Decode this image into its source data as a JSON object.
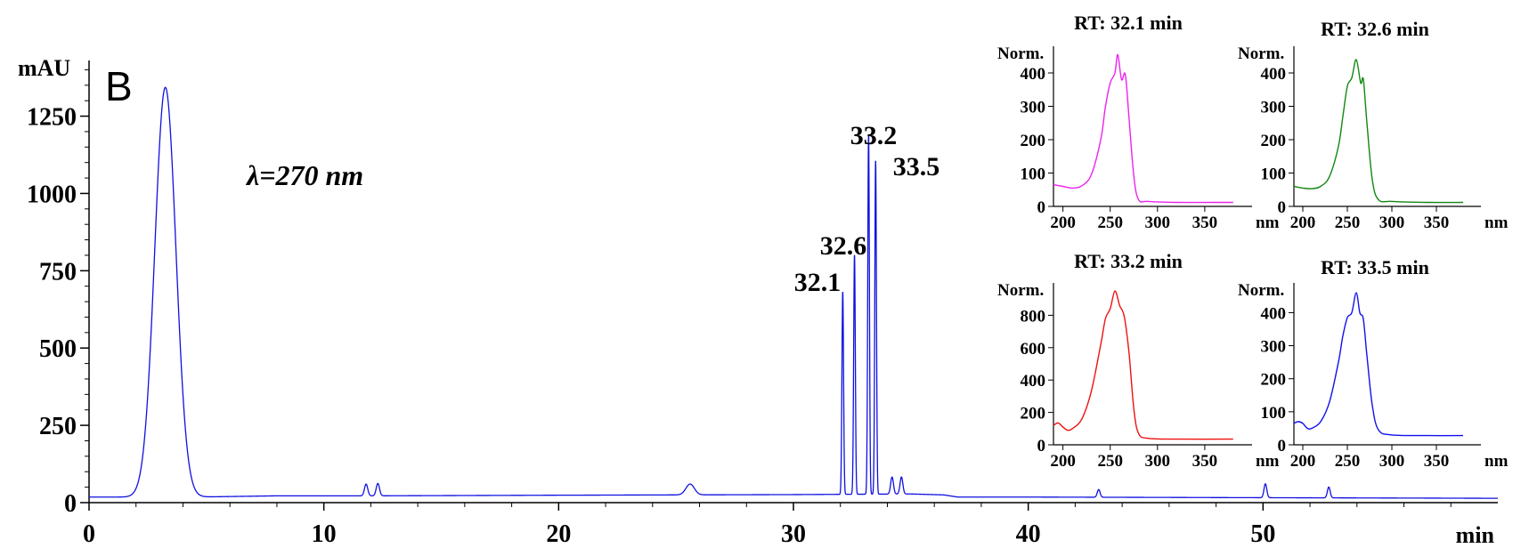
{
  "panel_label": "B",
  "annotation": "λ=270 nm",
  "colors": {
    "main": "#1010e0",
    "magenta": "#ee22ee",
    "green": "#118811",
    "red": "#ee1111",
    "blue": "#1111ee",
    "axis": "#000000"
  },
  "chart_data": [
    {
      "type": "line",
      "xlabel": "min",
      "ylabel": "mAU",
      "xlim": [
        0,
        60
      ],
      "ylim": [
        0,
        1430
      ],
      "x_ticks": [
        "0",
        "10",
        "20",
        "30",
        "40",
        "50"
      ],
      "y_ticks": [
        "0",
        "250",
        "500",
        "750",
        "1000",
        "1250"
      ],
      "baseline": [
        [
          0,
          18
        ],
        [
          2.6,
          18
        ],
        [
          4.5,
          18
        ],
        [
          8,
          22
        ],
        [
          12,
          22
        ],
        [
          20,
          24
        ],
        [
          30,
          26
        ],
        [
          35,
          28
        ],
        [
          36.4,
          25
        ],
        [
          37,
          18
        ],
        [
          40,
          18
        ],
        [
          50,
          16
        ],
        [
          60,
          14
        ]
      ],
      "peaks": [
        {
          "rt": 3.25,
          "height": 1325,
          "width": 0.45
        },
        {
          "rt": 11.8,
          "height": 38,
          "width": 0.07
        },
        {
          "rt": 12.3,
          "height": 40,
          "width": 0.07
        },
        {
          "rt": 25.6,
          "height": 35,
          "width": 0.18
        },
        {
          "rt": 32.1,
          "height": 655,
          "width": 0.035
        },
        {
          "rt": 32.6,
          "height": 775,
          "width": 0.035
        },
        {
          "rt": 33.2,
          "height": 1165,
          "width": 0.035
        },
        {
          "rt": 33.5,
          "height": 1080,
          "width": 0.035
        },
        {
          "rt": 34.2,
          "height": 55,
          "width": 0.06
        },
        {
          "rt": 34.6,
          "height": 55,
          "width": 0.06
        },
        {
          "rt": 43.0,
          "height": 25,
          "width": 0.06
        },
        {
          "rt": 50.1,
          "height": 45,
          "width": 0.06
        },
        {
          "rt": 52.8,
          "height": 35,
          "width": 0.06
        }
      ],
      "peak_labels": [
        "32.1",
        "32.6",
        "33.2",
        "33.5"
      ]
    },
    {
      "type": "line",
      "title": "RT: 32.1 min",
      "ylabel": "Norm.",
      "xlabel": "nm",
      "xlim": [
        190,
        400
      ],
      "ylim": [
        0,
        480
      ],
      "x_ticks": [
        "200",
        "250",
        "300",
        "350"
      ],
      "y_ticks": [
        "0",
        "100",
        "200",
        "300",
        "400"
      ],
      "points": [
        [
          190,
          65
        ],
        [
          200,
          60
        ],
        [
          210,
          55
        ],
        [
          220,
          62
        ],
        [
          230,
          95
        ],
        [
          240,
          200
        ],
        [
          245,
          300
        ],
        [
          250,
          370
        ],
        [
          255,
          400
        ],
        [
          258,
          455
        ],
        [
          262,
          380
        ],
        [
          266,
          395
        ],
        [
          270,
          260
        ],
        [
          275,
          90
        ],
        [
          280,
          20
        ],
        [
          290,
          15
        ],
        [
          320,
          12
        ],
        [
          360,
          12
        ],
        [
          380,
          12
        ]
      ]
    },
    {
      "type": "line",
      "title": "RT: 32.6 min",
      "ylabel": "Norm.",
      "xlabel": "nm",
      "xlim": [
        190,
        400
      ],
      "ylim": [
        0,
        480
      ],
      "x_ticks": [
        "200",
        "250",
        "300",
        "350"
      ],
      "y_ticks": [
        "0",
        "100",
        "200",
        "300",
        "400"
      ],
      "points": [
        [
          190,
          60
        ],
        [
          200,
          55
        ],
        [
          210,
          53
        ],
        [
          220,
          60
        ],
        [
          230,
          90
        ],
        [
          240,
          180
        ],
        [
          245,
          270
        ],
        [
          250,
          360
        ],
        [
          255,
          385
        ],
        [
          260,
          440
        ],
        [
          265,
          370
        ],
        [
          268,
          380
        ],
        [
          272,
          250
        ],
        [
          278,
          80
        ],
        [
          285,
          20
        ],
        [
          300,
          15
        ],
        [
          340,
          12
        ],
        [
          380,
          12
        ]
      ]
    },
    {
      "type": "line",
      "title": "RT: 33.2 min",
      "ylabel": "Norm.",
      "xlabel": "nm",
      "xlim": [
        190,
        400
      ],
      "ylim": [
        0,
        1000
      ],
      "x_ticks": [
        "200",
        "250",
        "300",
        "350"
      ],
      "y_ticks": [
        "0",
        "200",
        "400",
        "600",
        "800"
      ],
      "points": [
        [
          190,
          120
        ],
        [
          195,
          135
        ],
        [
          200,
          110
        ],
        [
          205,
          90
        ],
        [
          210,
          100
        ],
        [
          220,
          160
        ],
        [
          230,
          330
        ],
        [
          240,
          620
        ],
        [
          245,
          780
        ],
        [
          250,
          840
        ],
        [
          255,
          950
        ],
        [
          260,
          860
        ],
        [
          265,
          790
        ],
        [
          270,
          560
        ],
        [
          275,
          220
        ],
        [
          280,
          70
        ],
        [
          290,
          40
        ],
        [
          320,
          35
        ],
        [
          380,
          35
        ]
      ]
    },
    {
      "type": "line",
      "title": "RT: 33.5 min",
      "ylabel": "Norm.",
      "xlabel": "nm",
      "xlim": [
        190,
        400
      ],
      "ylim": [
        0,
        490
      ],
      "x_ticks": [
        "200",
        "250",
        "300",
        "350"
      ],
      "y_ticks": [
        "0",
        "100",
        "200",
        "300",
        "400"
      ],
      "points": [
        [
          190,
          65
        ],
        [
          195,
          70
        ],
        [
          200,
          65
        ],
        [
          205,
          50
        ],
        [
          210,
          50
        ],
        [
          220,
          70
        ],
        [
          230,
          130
        ],
        [
          240,
          250
        ],
        [
          245,
          330
        ],
        [
          250,
          385
        ],
        [
          255,
          400
        ],
        [
          260,
          460
        ],
        [
          264,
          400
        ],
        [
          268,
          380
        ],
        [
          272,
          270
        ],
        [
          278,
          120
        ],
        [
          285,
          45
        ],
        [
          300,
          30
        ],
        [
          340,
          28
        ],
        [
          380,
          28
        ]
      ]
    }
  ]
}
